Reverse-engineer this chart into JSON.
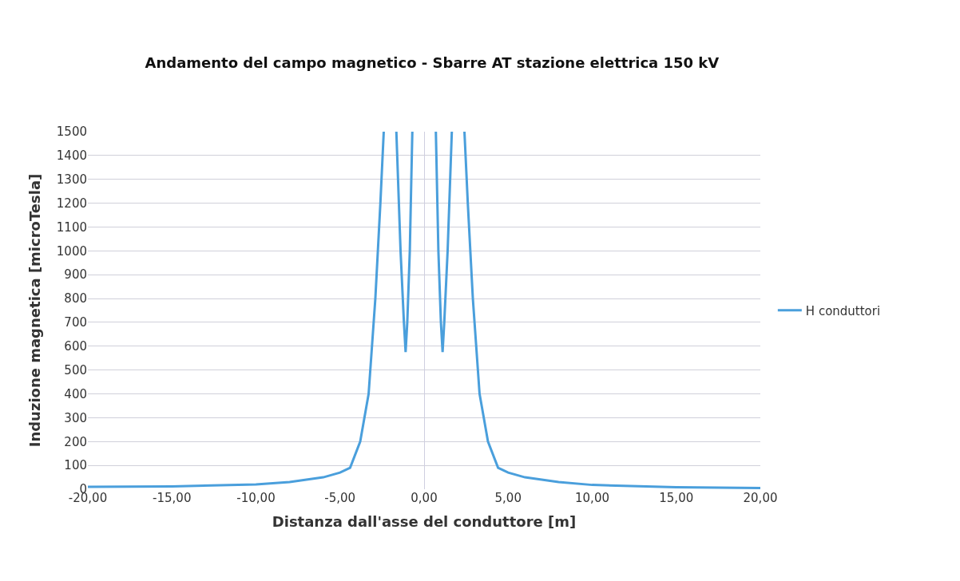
{
  "chart_data": {
    "type": "line",
    "title": "Andamento del campo magnetico - Sbarre AT stazione elettrica 150 kV",
    "xlabel": "Distanza dall'asse del conduttore [m]",
    "ylabel": "Induzione magnetica [microTesla]",
    "x": [
      -20,
      -15,
      -10,
      -8,
      -6,
      -5,
      -4.4,
      -3.8,
      -3.3,
      -2.9,
      -2.6,
      -2.4,
      -2.0,
      -1.65,
      -1.4,
      -1.2,
      -1.1,
      -1.0,
      -0.85,
      -0.7,
      0,
      0.7,
      0.85,
      1.0,
      1.1,
      1.2,
      1.4,
      1.65,
      2.0,
      2.4,
      2.6,
      2.9,
      3.3,
      3.8,
      4.4,
      5,
      6,
      8,
      10,
      15,
      20
    ],
    "series": [
      {
        "name": "H conduttori",
        "color": "#4a9fdc",
        "values": [
          10,
          12,
          20,
          30,
          50,
          70,
          90,
          200,
          400,
          800,
          1200,
          1500,
          null,
          1500,
          1000,
          700,
          575,
          700,
          1000,
          1500,
          null,
          1500,
          1000,
          700,
          575,
          700,
          1000,
          1500,
          null,
          1500,
          1200,
          800,
          400,
          200,
          90,
          70,
          50,
          30,
          18,
          8,
          5
        ]
      }
    ],
    "xlim": [
      -20,
      20
    ],
    "xticks": [
      {
        "value": -20,
        "label": "-20,00"
      },
      {
        "value": -15,
        "label": "-15,00"
      },
      {
        "value": -10,
        "label": "-10,00"
      },
      {
        "value": -5,
        "label": "-5,00"
      },
      {
        "value": 0,
        "label": "0,00"
      },
      {
        "value": 5,
        "label": "5,00"
      },
      {
        "value": 10,
        "label": "10,00"
      },
      {
        "value": 15,
        "label": "15,00"
      },
      {
        "value": 20,
        "label": "20,00"
      }
    ],
    "ylim": [
      0,
      1500
    ],
    "yticks": [
      0,
      100,
      200,
      300,
      400,
      500,
      600,
      700,
      800,
      900,
      1000,
      1100,
      1200,
      1300,
      1400,
      1500
    ],
    "grid": "y",
    "legend": "right",
    "marker": "none",
    "line_style": "solid"
  }
}
